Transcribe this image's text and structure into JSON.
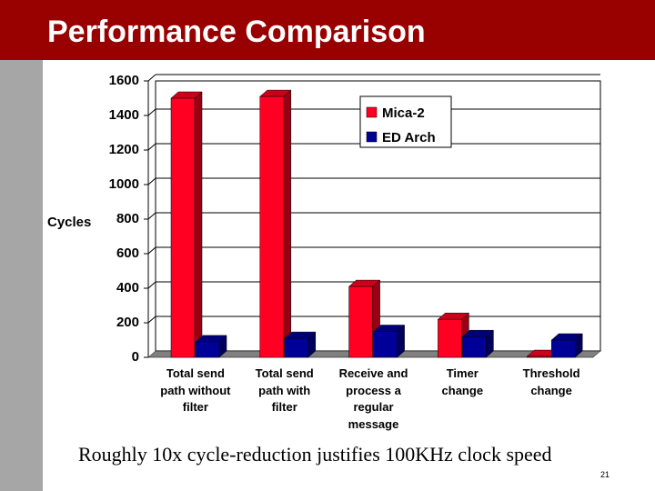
{
  "slide": {
    "title": "Performance Comparison",
    "caption": "Roughly 10x cycle-reduction justifies 100KHz clock speed",
    "page_number": "21"
  },
  "colors": {
    "title_bar": "#990000",
    "side_bar": "#a6a6a6",
    "series_1": "#ff0022",
    "series_2": "#000099",
    "floor": "#808080"
  },
  "chart_data": {
    "type": "bar",
    "categories": [
      "Total send path without filter",
      "Total send path with filter",
      "Receive and process a regular message",
      "Timer change",
      "Threshold change"
    ],
    "category_labels": [
      [
        "Total send",
        "path without",
        "filter"
      ],
      [
        "Total send",
        "path with",
        "filter"
      ],
      [
        "Receive and",
        "process a",
        "regular",
        "message"
      ],
      [
        "Timer",
        "change"
      ],
      [
        "Threshold",
        "change"
      ]
    ],
    "series": [
      {
        "name": "Mica-2",
        "values": [
          1500,
          1510,
          410,
          220,
          5
        ]
      },
      {
        "name": "ED Arch",
        "values": [
          90,
          110,
          150,
          120,
          100
        ]
      }
    ],
    "ylabel": "Cycles",
    "ylim": [
      0,
      1600
    ],
    "yticks": [
      "0",
      "200",
      "400",
      "600",
      "800",
      "1000",
      "1200",
      "1400",
      "1600"
    ],
    "grid": true,
    "legend_position": "top-right",
    "style": "3d-clustered-columns"
  }
}
